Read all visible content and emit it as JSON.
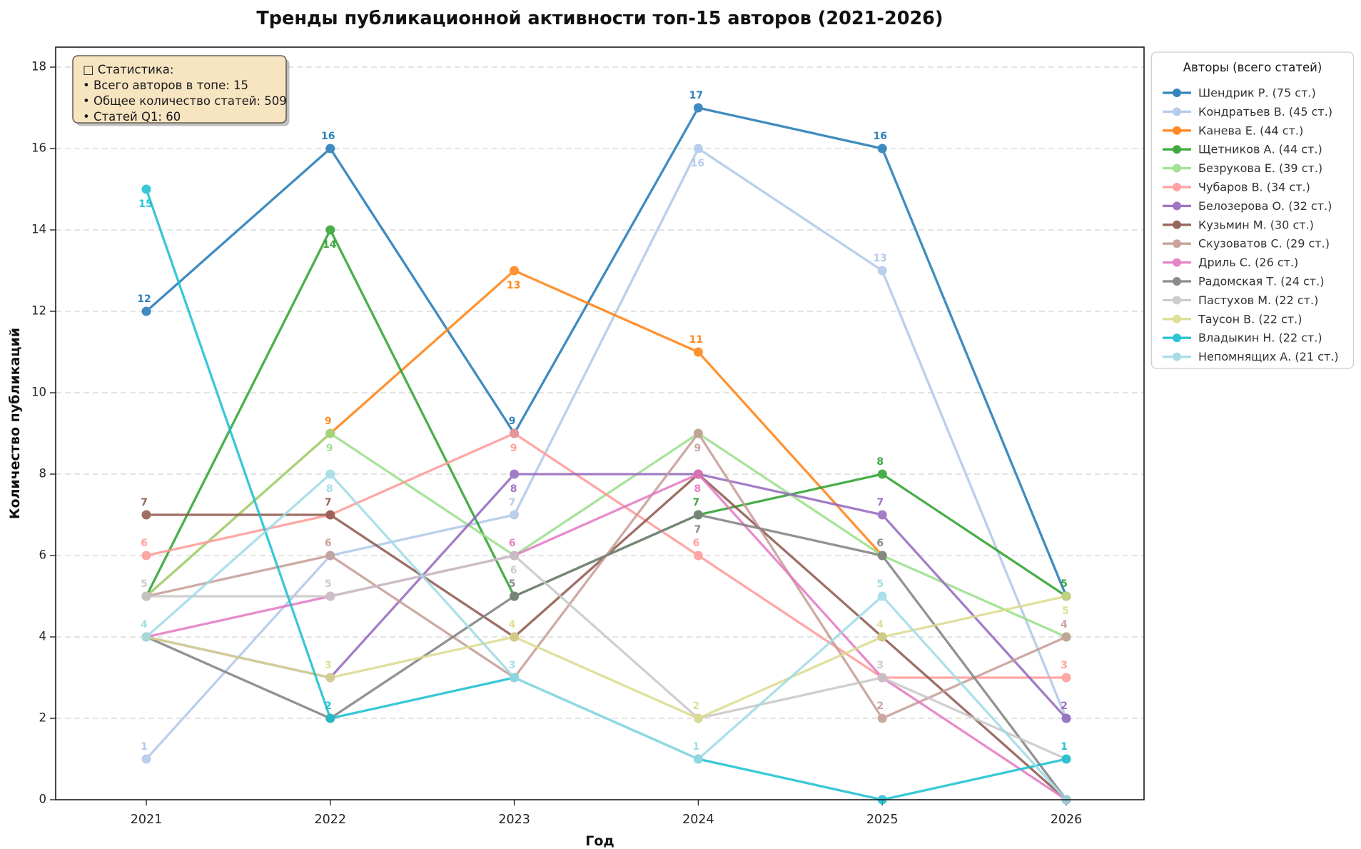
{
  "figure": {
    "title": "Тренды публикационной активности топ-15 авторов (2021-2026)",
    "xlabel": "Год",
    "ylabel": "Количество публикаций",
    "stats_box": {
      "lines": [
        "□ Статистика:",
        "• Всего авторов в топе: 15",
        "• Общее количество статей: 509",
        "• Статей Q1: 60"
      ],
      "fill": "#f7e5c2",
      "border": "#4d4537"
    }
  },
  "legend": {
    "title": "Авторы (всего статей)"
  },
  "chart_data": {
    "type": "line",
    "title": "Тренды публикационной активности топ-15 авторов (2021-2026)",
    "xlabel": "Год",
    "ylabel": "Количество публикаций",
    "x": [
      2021,
      2022,
      2023,
      2024,
      2025,
      2026
    ],
    "ylim": [
      0,
      18.5
    ],
    "yticks": [
      0,
      2,
      4,
      6,
      8,
      10,
      12,
      14,
      16,
      18
    ],
    "grid": "y-dashed",
    "legend_position": "outside-right-top",
    "series": [
      {
        "name": "Шендрик Р.",
        "legend_label": "Шендрик Р. (75 ст.)",
        "color": "#1f77b4",
        "values": [
          12,
          16,
          9,
          17,
          16,
          5
        ],
        "label_sides": [
          "a",
          "a",
          "a",
          "a",
          "a",
          "h"
        ]
      },
      {
        "name": "Кондратьев В.",
        "legend_label": "Кондратьев В. (45 ст.)",
        "color": "#aec7e8",
        "values": [
          1,
          6,
          7,
          16,
          13,
          2
        ],
        "label_sides": [
          "a",
          "h",
          "a",
          "b",
          "a",
          "h"
        ]
      },
      {
        "name": "Канева Е.",
        "legend_label": "Канева Е. (44 ст.)",
        "color": "#ff7f0e",
        "values": [
          5,
          9,
          13,
          11,
          6,
          null
        ],
        "label_sides": [
          "h",
          "a",
          "b",
          "a",
          "h",
          "-"
        ]
      },
      {
        "name": "Щетников А.",
        "legend_label": "Щетников А. (44 ст.)",
        "color": "#2ca02c",
        "values": [
          5,
          14,
          5,
          7,
          8,
          5
        ],
        "label_sides": [
          "h",
          "b",
          "h",
          "a",
          "a",
          "a"
        ]
      },
      {
        "name": "Безрукова Е.",
        "legend_label": "Безрукова Е. (39 ст.)",
        "color": "#98df8a",
        "values": [
          5,
          9,
          6,
          9,
          6,
          4
        ],
        "label_sides": [
          "h",
          "b",
          "h",
          "h",
          "h",
          "h"
        ]
      },
      {
        "name": "Чубаров В.",
        "legend_label": "Чубаров В. (34 ст.)",
        "color": "#ff9896",
        "values": [
          6,
          7,
          9,
          6,
          3,
          3
        ],
        "label_sides": [
          "a",
          "h",
          "b",
          "a",
          "h",
          "a"
        ]
      },
      {
        "name": "Белозерова О.",
        "legend_label": "Белозерова О. (32 ст.)",
        "color": "#9467bd",
        "values": [
          4,
          3,
          8,
          8,
          7,
          2
        ],
        "label_sides": [
          "h",
          "h",
          "b",
          "h",
          "a",
          "a"
        ]
      },
      {
        "name": "Кузьмин М.",
        "legend_label": "Кузьмин М. (30 ст.)",
        "color": "#8c564b",
        "values": [
          7,
          7,
          4,
          8,
          4,
          0
        ],
        "label_sides": [
          "a",
          "a",
          "h",
          "h",
          "h",
          "h"
        ]
      },
      {
        "name": "Скузоватов С.",
        "legend_label": "Скузоватов С. (29 ст.)",
        "color": "#c49c94",
        "values": [
          5,
          6,
          3,
          9,
          2,
          4
        ],
        "label_sides": [
          "h",
          "a",
          "h",
          "b",
          "a",
          "a"
        ]
      },
      {
        "name": "Дриль С.",
        "legend_label": "Дриль С. (26 ст.)",
        "color": "#e377c2",
        "values": [
          4,
          5,
          6,
          8,
          3,
          0
        ],
        "label_sides": [
          "h",
          "h",
          "a",
          "b",
          "h",
          "h"
        ]
      },
      {
        "name": "Радомская Т.",
        "legend_label": "Радомская Т. (24 ст.)",
        "color": "#7f7f7f",
        "values": [
          4,
          2,
          5,
          7,
          6,
          0
        ],
        "label_sides": [
          "h",
          "h",
          "a",
          "b",
          "a",
          "h"
        ]
      },
      {
        "name": "Пастухов М.",
        "legend_label": "Пастухов М. (22 ст.)",
        "color": "#c7c7c7",
        "values": [
          5,
          5,
          6,
          2,
          3,
          1
        ],
        "label_sides": [
          "a",
          "a",
          "b",
          "h",
          "a",
          "h"
        ]
      },
      {
        "name": "Таусон В.",
        "legend_label": "Таусон В. (22 ст.)",
        "color": "#dbdb8d",
        "values": [
          4,
          3,
          4,
          2,
          4,
          5
        ],
        "label_sides": [
          "h",
          "a",
          "a",
          "a",
          "a",
          "b"
        ]
      },
      {
        "name": "Владыкин Н.",
        "legend_label": "Владыкин Н. (22 ст.)",
        "color": "#17becf",
        "values": [
          15,
          2,
          3,
          1,
          0,
          1
        ],
        "label_sides": [
          "b",
          "a",
          "h",
          "h",
          "h",
          "a"
        ]
      },
      {
        "name": "Непомнящих А.",
        "legend_label": "Непомнящих А. (21 ст.)",
        "color": "#9edae5",
        "values": [
          4,
          8,
          3,
          1,
          5,
          0
        ],
        "label_sides": [
          "a",
          "b",
          "a",
          "a",
          "a",
          "h"
        ]
      }
    ]
  }
}
